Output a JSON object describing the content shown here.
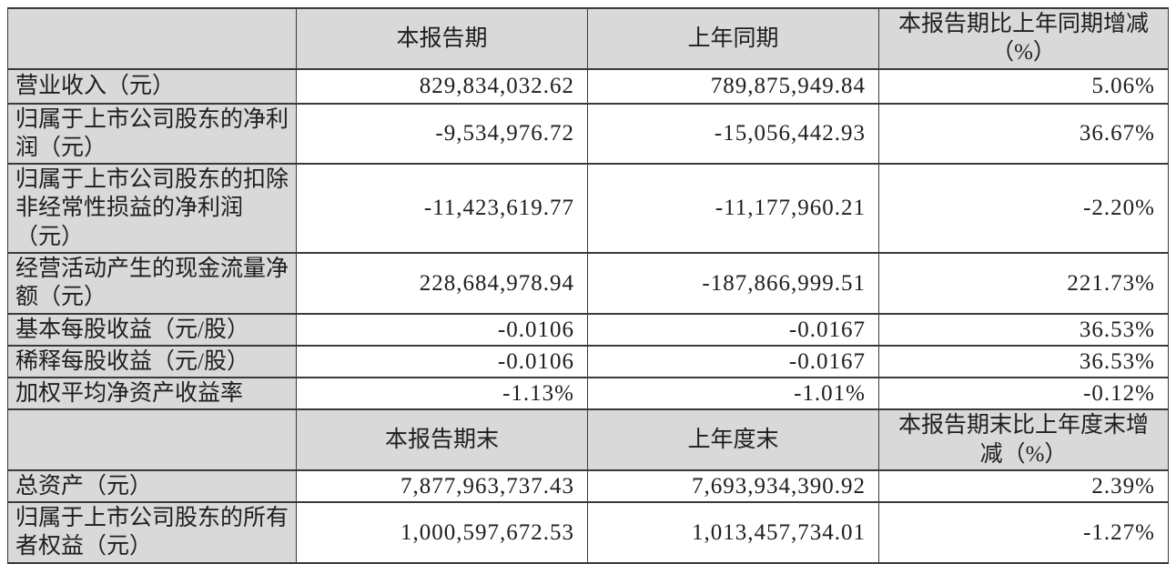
{
  "table": {
    "section1": {
      "corner": "",
      "col_current": "本报告期",
      "col_prior": "上年同期",
      "col_change": "本报告期比上年同期增减（%）",
      "rows": [
        {
          "label": "营业收入（元）",
          "current": "829,834,032.62",
          "prior": "789,875,949.84",
          "change": "5.06%"
        },
        {
          "label": "归属于上市公司股东的净利润（元）",
          "current": "-9,534,976.72",
          "prior": "-15,056,442.93",
          "change": "36.67%"
        },
        {
          "label": "归属于上市公司股东的扣除非经常性损益的净利润（元）",
          "current": "-11,423,619.77",
          "prior": "-11,177,960.21",
          "change": "-2.20%"
        },
        {
          "label": "经营活动产生的现金流量净额（元）",
          "current": "228,684,978.94",
          "prior": "-187,866,999.51",
          "change": "221.73%"
        },
        {
          "label": "基本每股收益（元/股）",
          "current": "-0.0106",
          "prior": "-0.0167",
          "change": "36.53%"
        },
        {
          "label": "稀释每股收益（元/股）",
          "current": "-0.0106",
          "prior": "-0.0167",
          "change": "36.53%"
        },
        {
          "label": "加权平均净资产收益率",
          "current": "-1.13%",
          "prior": "-1.01%",
          "change": "-0.12%"
        }
      ]
    },
    "section2": {
      "corner": "",
      "col_current": "本报告期末",
      "col_prior": "上年度末",
      "col_change": "本报告期末比上年度末增减（%）",
      "rows": [
        {
          "label": "总资产（元）",
          "current": "7,877,963,737.43",
          "prior": "7,693,934,390.92",
          "change": "2.39%"
        },
        {
          "label": "归属于上市公司股东的所有者权益（元）",
          "current": "1,000,597,672.53",
          "prior": "1,013,457,734.01",
          "change": "-1.27%"
        }
      ]
    },
    "colors": {
      "header_bg": "#d9d9d9",
      "label_bg": "#d9d9d9",
      "value_bg": "#ffffff",
      "border": "#3a3a3a",
      "text": "#1e1e1e"
    }
  }
}
